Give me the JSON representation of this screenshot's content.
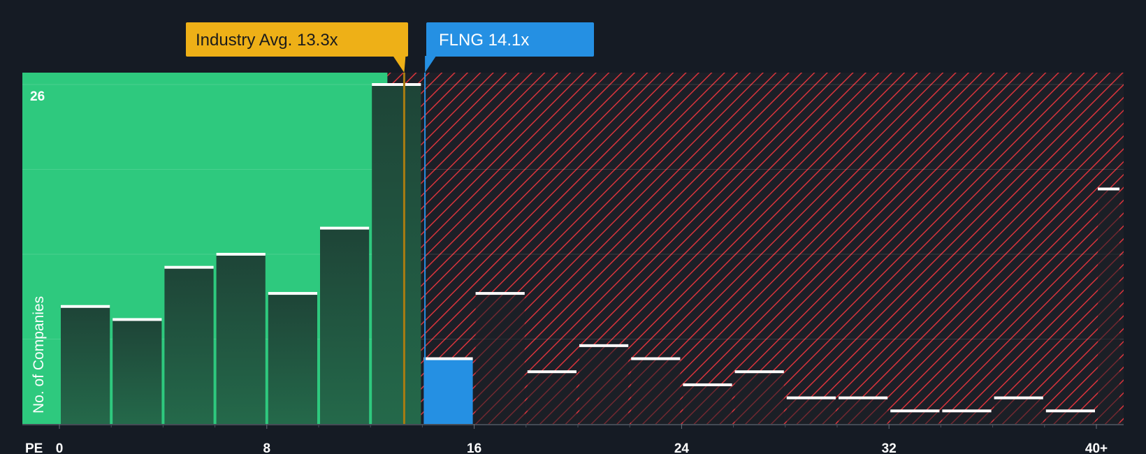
{
  "chart_data": {
    "type": "bar",
    "x_axis_label": "PE",
    "y_axis_label": "No. of Companies",
    "x_ticks": [
      "0",
      "8",
      "16",
      "24",
      "32",
      "40+"
    ],
    "y_max_label": "26",
    "ylim": [
      0,
      26
    ],
    "xlim": [
      0,
      41
    ],
    "bins": [
      {
        "x0": 0,
        "x1": 2,
        "value": 9
      },
      {
        "x0": 2,
        "x1": 4,
        "value": 8
      },
      {
        "x0": 4,
        "x1": 6,
        "value": 12
      },
      {
        "x0": 6,
        "x1": 8,
        "value": 13
      },
      {
        "x0": 8,
        "x1": 10,
        "value": 10
      },
      {
        "x0": 10,
        "x1": 12,
        "value": 15
      },
      {
        "x0": 12,
        "x1": 14,
        "value": 26
      },
      {
        "x0": 14,
        "x1": 16,
        "value": 5,
        "highlight": true
      },
      {
        "x0": 16,
        "x1": 18,
        "value": 10
      },
      {
        "x0": 18,
        "x1": 20,
        "value": 4
      },
      {
        "x0": 20,
        "x1": 22,
        "value": 6
      },
      {
        "x0": 22,
        "x1": 24,
        "value": 5
      },
      {
        "x0": 24,
        "x1": 26,
        "value": 3
      },
      {
        "x0": 26,
        "x1": 28,
        "value": 4
      },
      {
        "x0": 28,
        "x1": 30,
        "value": 2
      },
      {
        "x0": 30,
        "x1": 32,
        "value": 2
      },
      {
        "x0": 32,
        "x1": 34,
        "value": 1
      },
      {
        "x0": 34,
        "x1": 36,
        "value": 1
      },
      {
        "x0": 36,
        "x1": 38,
        "value": 2
      },
      {
        "x0": 38,
        "x1": 40,
        "value": 1
      },
      {
        "x0": 40,
        "x1": 41,
        "value": 18
      }
    ],
    "industry_avg": {
      "label": "Industry Avg. 13.3x",
      "value": 13.3
    },
    "company": {
      "label": "FLNG 14.1x",
      "value": 14.1
    },
    "colors": {
      "background": "#151b24",
      "green_zone": "#2ec97e",
      "bar_fill": "#1f4a3b",
      "bar_cap": "#ffffff",
      "highlight_bar": "#2590e3",
      "hatch_red": "#d9343c",
      "industry_callout": "#eeb017",
      "company_callout": "#2590e3"
    }
  }
}
